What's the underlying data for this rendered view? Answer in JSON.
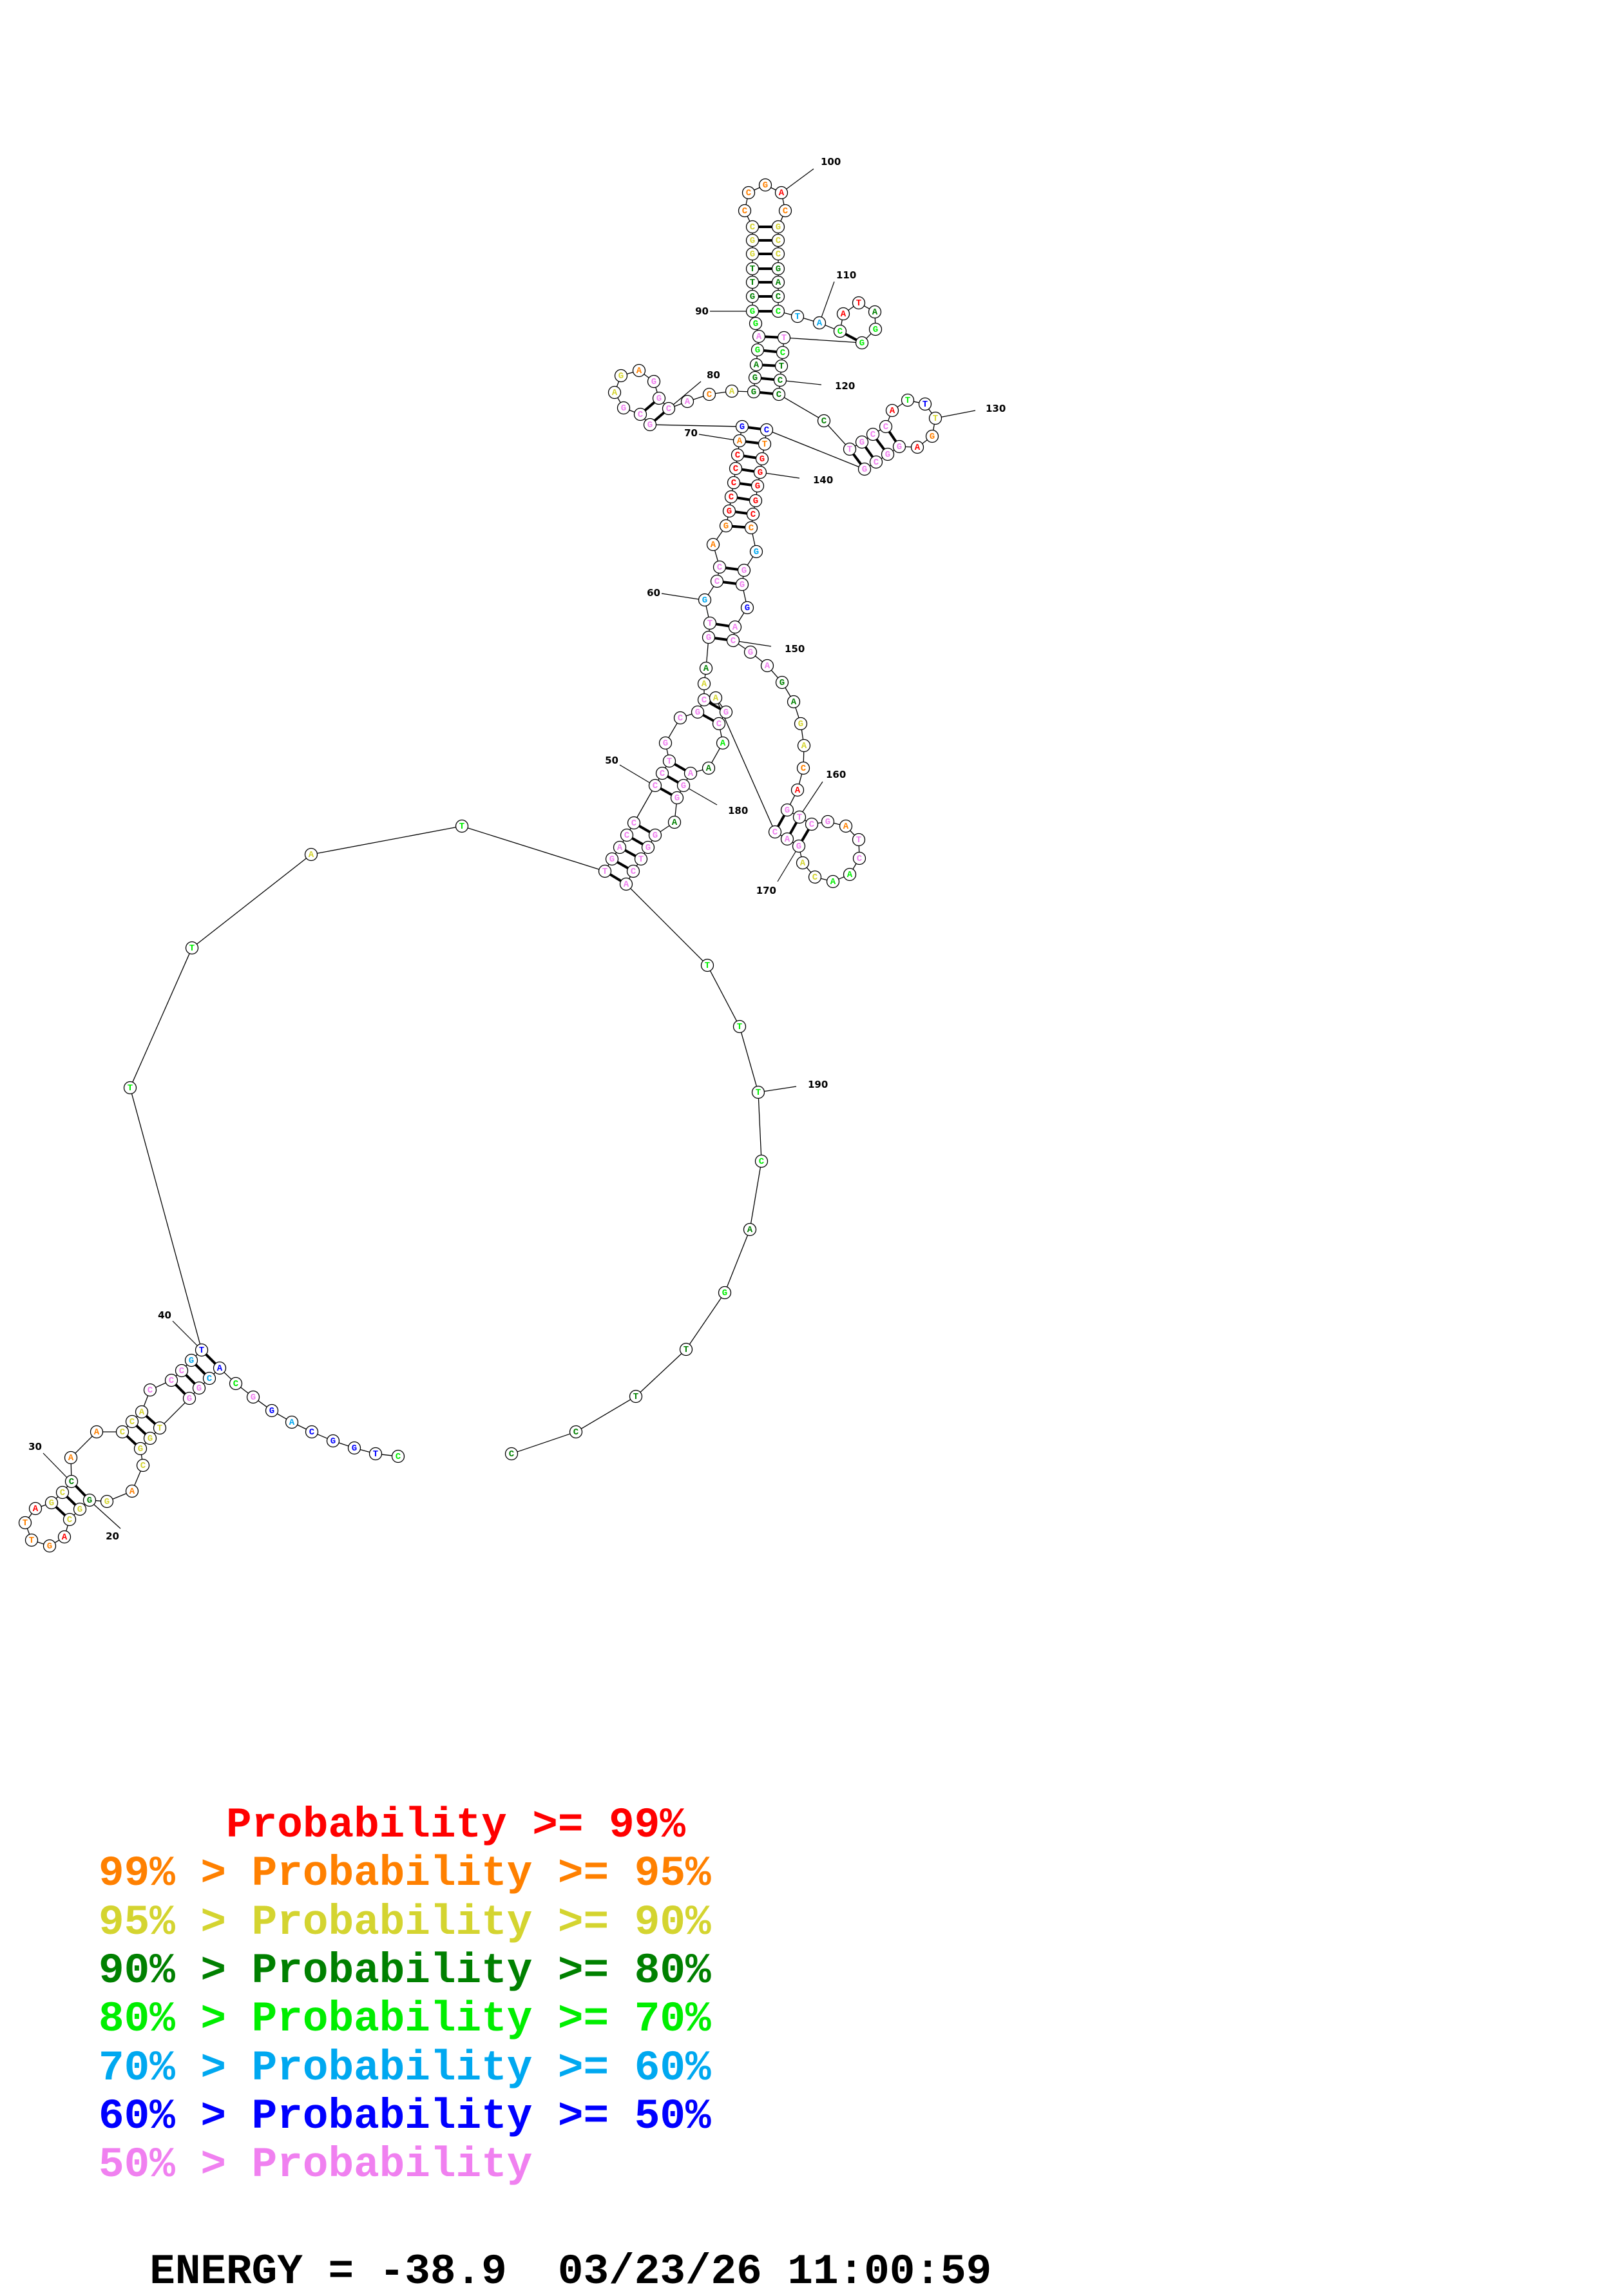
{
  "structure": {
    "sequence": "CTGGCAGGCACGGTGGCAGGGCAGTTAGCCAACCACCCGTTTATTGACCCCTGCGCAAGTGCCAGGCCCCAGGCGAGAGGCACAGGAGAGGGTTGGCCCGACGCCGACCTACATAGGTCTCCCTGCCATTTGAGGCGCTGGGGCCGGGGACGAGAGACAGTCGATCAACAGACAGCAAAGGAGGTCATTTCAGTTCC",
    "probability_class": "gbbbbcbpgbcppyyyyoyDyyroooryyDooyyypppcbggygppppppppppppyDppcppoorrrrrobpppyyoppppoyDDDgpggDDDyyyoooroyyyDDDgccgrrDggpgDDDDpppprgbyorppppborrrrrocppbppppDDyyorppppoppggyypppyppgDpppDpppppggggDgDDDD",
    "base_pairs": [
      [
        10,
        40
      ],
      [
        11,
        39
      ],
      [
        12,
        38
      ],
      [
        13,
        37
      ],
      [
        14,
        35
      ],
      [
        15,
        34
      ],
      [
        16,
        33
      ],
      [
        20,
        30
      ],
      [
        21,
        29
      ],
      [
        22,
        28
      ],
      [
        45,
        187
      ],
      [
        46,
        186
      ],
      [
        47,
        185
      ],
      [
        48,
        184
      ],
      [
        49,
        183
      ],
      [
        50,
        181
      ],
      [
        51,
        180
      ],
      [
        52,
        179
      ],
      [
        55,
        176
      ],
      [
        56,
        175
      ],
      [
        59,
        151
      ],
      [
        60,
        150
      ],
      [
        62,
        148
      ],
      [
        63,
        147
      ],
      [
        65,
        145
      ],
      [
        66,
        144
      ],
      [
        67,
        143
      ],
      [
        68,
        142
      ],
      [
        69,
        141
      ],
      [
        70,
        140
      ],
      [
        71,
        139
      ],
      [
        72,
        138
      ],
      [
        73,
        81
      ],
      [
        74,
        80
      ],
      [
        85,
        122
      ],
      [
        86,
        121
      ],
      [
        87,
        120
      ],
      [
        88,
        119
      ],
      [
        89,
        118
      ],
      [
        91,
        109
      ],
      [
        92,
        108
      ],
      [
        93,
        107
      ],
      [
        94,
        106
      ],
      [
        95,
        105
      ],
      [
        96,
        104
      ],
      [
        97,
        103
      ],
      [
        112,
        117
      ],
      [
        124,
        137
      ],
      [
        125,
        136
      ],
      [
        126,
        135
      ],
      [
        127,
        134
      ],
      [
        160,
        173
      ],
      [
        161,
        172
      ],
      [
        162,
        171
      ]
    ],
    "position_labels": [
      "100",
      "110",
      "90",
      "80",
      "120",
      "130",
      "70",
      "140",
      "60",
      "150",
      "50",
      "180",
      "160",
      "170",
      "190",
      "40",
      "30",
      "20"
    ]
  },
  "colors": {
    "r": "#ff0000",
    "o": "#ff8000",
    "y": "#d4d430",
    "D": "#008000",
    "g": "#00ee00",
    "c": "#00a8f0",
    "b": "#0000ff",
    "p": "#f080f0"
  },
  "legend": [
    {
      "text": "     Probability >= 99%",
      "cls": "r"
    },
    {
      "text": "99% > Probability >= 95%",
      "cls": "o"
    },
    {
      "text": "95% > Probability >= 90%",
      "cls": "y"
    },
    {
      "text": "90% > Probability >= 80%",
      "cls": "D"
    },
    {
      "text": "80% > Probability >= 70%",
      "cls": "g"
    },
    {
      "text": "70% > Probability >= 60%",
      "cls": "c"
    },
    {
      "text": "60% > Probability >= 50%",
      "cls": "b"
    },
    {
      "text": "50% > Probability",
      "cls": "p"
    }
  ],
  "footer": {
    "energy_text": "ENERGY = -38.9  03/23/26 11:00:59"
  }
}
